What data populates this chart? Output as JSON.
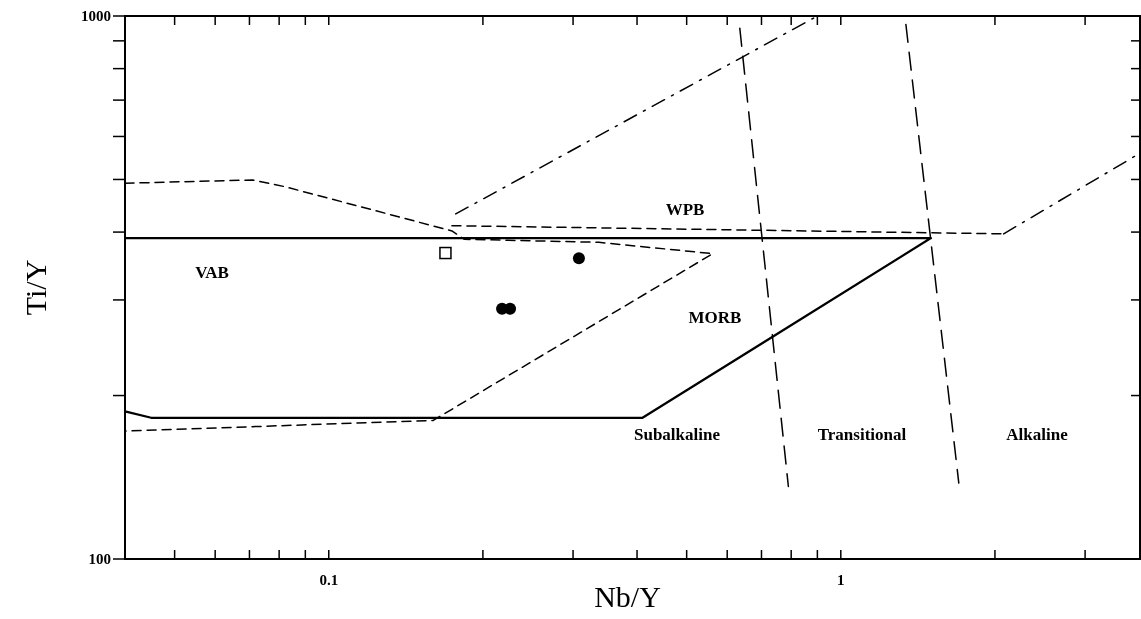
{
  "chart_data": {
    "type": "scatter",
    "xlabel": "Nb/Y",
    "ylabel": "Ti/Y",
    "log": "xy",
    "grid": false,
    "xlim": [
      0.04,
      3.84
    ],
    "ylim": [
      100,
      1000
    ],
    "xticks": [
      {
        "value": 0.05,
        "label": null
      },
      {
        "value": 0.06,
        "label": null
      },
      {
        "value": 0.07,
        "label": null
      },
      {
        "value": 0.08,
        "label": null
      },
      {
        "value": 0.09,
        "label": null
      },
      0.1,
      {
        "value": 0.2,
        "label": null
      },
      {
        "value": 0.3,
        "label": null
      },
      {
        "value": 0.4,
        "label": null
      },
      {
        "value": 0.5,
        "label": null
      },
      {
        "value": 0.6,
        "label": null
      },
      {
        "value": 0.7,
        "label": null
      },
      {
        "value": 0.8,
        "label": null
      },
      {
        "value": 0.9,
        "label": null
      },
      1,
      {
        "value": 2,
        "label": null
      },
      {
        "value": 3,
        "label": null
      }
    ],
    "yticks": [
      100,
      {
        "value": 200,
        "label": null
      },
      {
        "value": 300,
        "label": null
      },
      {
        "value": 400,
        "label": null
      },
      {
        "value": 500,
        "label": null
      },
      {
        "value": 600,
        "label": null
      },
      {
        "value": 700,
        "label": null
      },
      {
        "value": 800,
        "label": null
      },
      {
        "value": 900,
        "label": null
      },
      1000
    ],
    "series": [
      {
        "type": "line",
        "color": "#000000",
        "line_style": "solid",
        "x": [
          0.04,
          0.045,
          0.41,
          1.5,
          0.04
        ],
        "values": [
          187,
          182,
          182,
          390,
          390
        ]
      },
      {
        "type": "line",
        "color": "#000000",
        "line_style": "dashed",
        "x": [
          0.04,
          0.071,
          0.082,
          0.174,
          0.184,
          0.337,
          0.562,
          0.16,
          0.04
        ],
        "values": [
          492,
          499,
          485,
          402,
          388,
          383,
          365,
          180,
          172
        ]
      },
      {
        "type": "line",
        "color": "#000000",
        "line_style": "dashed",
        "x": [
          0.174,
          2.08
        ],
        "values": [
          411,
          397
        ]
      },
      {
        "type": "line",
        "color": "#000000",
        "line_style": "dashdot",
        "x": [
          2.08,
          3.84
        ],
        "values": [
          397,
          559
        ]
      },
      {
        "type": "line",
        "color": "#000000",
        "line_style": "dashdot",
        "x": [
          0.177,
          0.9
        ],
        "values": [
          432,
          1000
        ]
      },
      {
        "type": "line",
        "color": "#000000",
        "line_style": "longdash",
        "x": [
          0.635,
          0.79
        ],
        "values": [
          949,
          136
        ]
      },
      {
        "type": "line",
        "color": "#000000",
        "line_style": "longdash",
        "x": [
          1.34,
          1.7
        ],
        "values": [
          965,
          138
        ]
      },
      {
        "color": "#000000",
        "marker": "square",
        "x": [
          0.169
        ],
        "values": [
          366
        ]
      },
      {
        "color": "#000000",
        "marker": "circle",
        "x": [
          0.308,
          0.218,
          0.226
        ],
        "values": [
          358,
          289,
          289
        ]
      }
    ],
    "annotations": [
      "VAB",
      "WPB",
      "MORB",
      "Subalkaline",
      "Transitional",
      "Alkaline"
    ]
  }
}
